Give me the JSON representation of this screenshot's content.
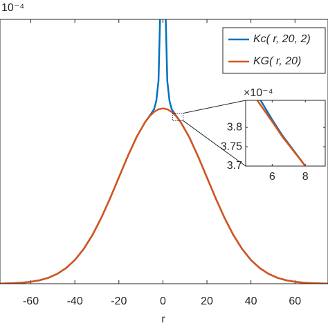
{
  "chart_data": [
    {
      "type": "line",
      "xlabel": "r",
      "y_scale_label": "10⁻⁴",
      "xlim": [
        -74,
        75
      ],
      "ylim": [
        0,
        6
      ],
      "xticks": [
        -60,
        -40,
        -20,
        0,
        20,
        40,
        60
      ],
      "legend": "upper right",
      "series": [
        {
          "name": "Kc( r, 20, 2)",
          "color": "#0072bd",
          "x": [
            -74,
            -72,
            -68,
            -64,
            -60,
            -56,
            -52,
            -48,
            -44,
            -40,
            -36,
            -32,
            -28,
            -24,
            -20,
            -16,
            -12,
            -8,
            -6,
            -4,
            -3,
            -2,
            -1.3,
            0,
            1.3,
            2,
            3,
            4,
            6,
            8,
            12,
            16,
            20,
            24,
            28,
            32,
            36,
            40,
            44,
            48,
            52,
            56,
            60,
            64,
            68,
            72,
            75
          ],
          "values": [
            0.0035,
            0.006,
            0.012,
            0.024,
            0.044,
            0.079,
            0.135,
            0.223,
            0.354,
            0.538,
            0.787,
            1.106,
            1.494,
            1.937,
            2.413,
            2.889,
            3.325,
            3.675,
            3.81,
            3.96,
            4.15,
            4.6,
            6.0,
            null,
            6.0,
            4.6,
            4.15,
            3.96,
            3.81,
            3.675,
            3.325,
            2.889,
            2.413,
            1.937,
            1.494,
            1.106,
            0.787,
            0.538,
            0.354,
            0.223,
            0.135,
            0.079,
            0.044,
            0.024,
            0.012,
            0.006,
            0.0035
          ]
        },
        {
          "name": "KG( r, 20)",
          "color": "#d95319",
          "x": [
            -74,
            -72,
            -68,
            -64,
            -60,
            -56,
            -52,
            -48,
            -44,
            -40,
            -36,
            -32,
            -28,
            -24,
            -20,
            -16,
            -12,
            -8,
            -6,
            -4,
            -2,
            0,
            2,
            4,
            6,
            8,
            12,
            16,
            20,
            24,
            28,
            32,
            36,
            40,
            44,
            48,
            52,
            56,
            60,
            64,
            68,
            72,
            75
          ],
          "values": [
            0.0035,
            0.006,
            0.012,
            0.024,
            0.044,
            0.079,
            0.135,
            0.223,
            0.354,
            0.538,
            0.787,
            1.106,
            1.494,
            1.937,
            2.413,
            2.889,
            3.325,
            3.673,
            3.804,
            3.9,
            3.959,
            3.979,
            3.959,
            3.9,
            3.804,
            3.673,
            3.325,
            2.889,
            2.413,
            1.937,
            1.494,
            1.106,
            0.787,
            0.538,
            0.354,
            0.223,
            0.135,
            0.079,
            0.044,
            0.024,
            0.012,
            0.006,
            0.0035
          ]
        }
      ]
    },
    {
      "type": "line",
      "y_scale_label": "×10⁻⁴",
      "xlim": [
        4.4,
        9.2
      ],
      "ylim": [
        3.7,
        3.87
      ],
      "xticks": [
        6,
        8
      ],
      "yticks": [
        3.7,
        3.75,
        3.8
      ],
      "series": [
        {
          "color": "#0072bd",
          "x": [
            5.3,
            6.0,
            6.6,
            8.0
          ],
          "values": [
            3.87,
            3.82,
            3.78,
            3.7
          ]
        },
        {
          "color": "#d95319",
          "x": [
            5.1,
            6.0,
            6.6,
            8.0
          ],
          "values": [
            3.87,
            3.815,
            3.777,
            3.7
          ]
        }
      ]
    }
  ]
}
